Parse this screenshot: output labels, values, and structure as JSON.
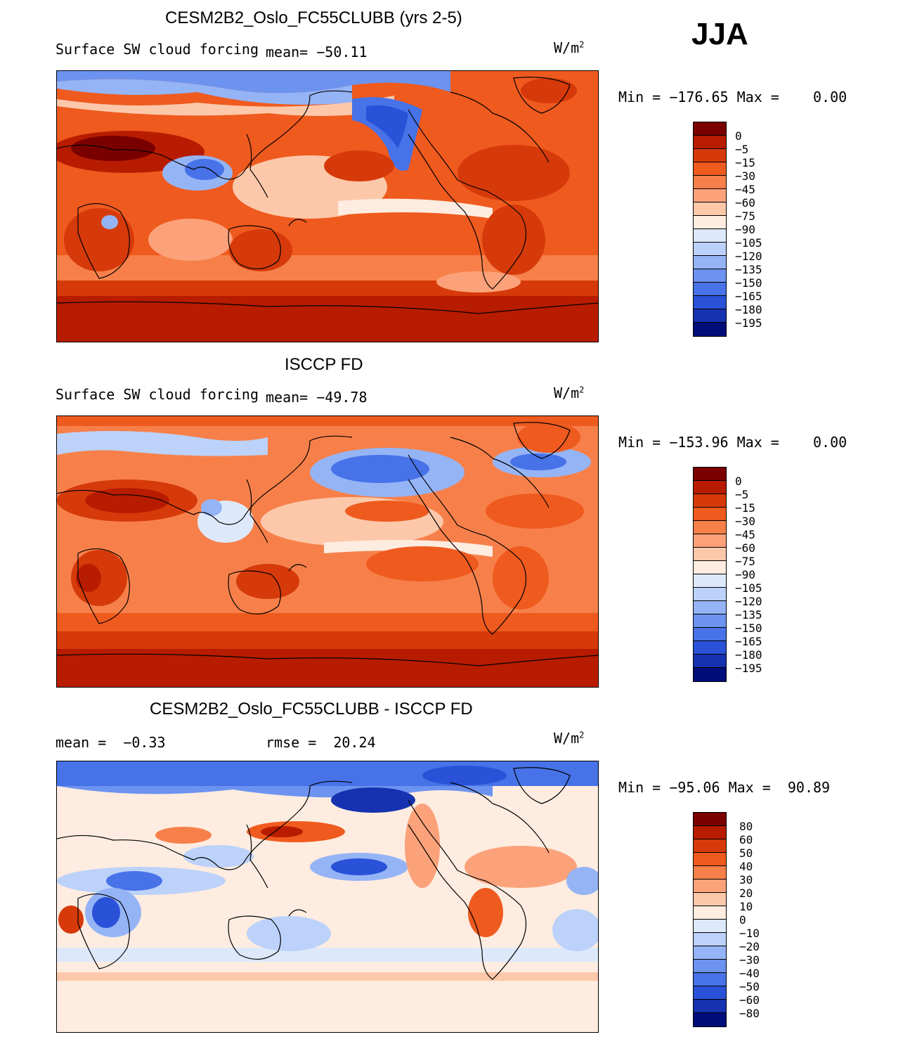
{
  "season": "JJA",
  "colors": {
    "scale": [
      "#7a0000",
      "#b81c00",
      "#d63a0a",
      "#ef5a1e",
      "#f7804a",
      "#fba27a",
      "#fdc8aa",
      "#feece0",
      "#dde9fb",
      "#bcd2fa",
      "#95b4f6",
      "#6d93f0",
      "#4772e8",
      "#2a52d8",
      "#1632b0",
      "#000d7a"
    ]
  },
  "panels": [
    {
      "title": "CESM2B2_Oslo_FC55CLUBB (yrs 2-5)",
      "variable": "Surface SW cloud forcing",
      "mean_label": "mean=",
      "mean": "−50.11",
      "units": "W/m",
      "units_exp": "2",
      "min_label": "Min =",
      "min": "−176.65",
      "max_label": "Max =",
      "max": "0.00",
      "levels": [
        "0",
        "−5",
        "−15",
        "−30",
        "−45",
        "−60",
        "−75",
        "−90",
        "−105",
        "−120",
        "−135",
        "−150",
        "−165",
        "−180",
        "−195"
      ]
    },
    {
      "title": "ISCCP FD",
      "variable": "Surface SW cloud forcing",
      "mean_label": "mean=",
      "mean": "−49.78",
      "units": "W/m",
      "units_exp": "2",
      "min_label": "Min =",
      "min": "−153.96",
      "max_label": "Max =",
      "max": "0.00",
      "levels": [
        "0",
        "−5",
        "−15",
        "−30",
        "−45",
        "−60",
        "−75",
        "−90",
        "−105",
        "−120",
        "−135",
        "−150",
        "−165",
        "−180",
        "−195"
      ]
    },
    {
      "title": "CESM2B2_Oslo_FC55CLUBB - ISCCP FD",
      "mean_label": "mean =",
      "mean": "−0.33",
      "rmse_label": "rmse =",
      "rmse": "20.24",
      "units": "W/m",
      "units_exp": "2",
      "min_label": "Min =",
      "min": "−95.06",
      "max_label": "Max =",
      "max": "90.89",
      "levels": [
        "80",
        "60",
        "50",
        "40",
        "30",
        "20",
        "10",
        "0",
        "−10",
        "−20",
        "−30",
        "−40",
        "−50",
        "−60",
        "−80"
      ]
    }
  ]
}
